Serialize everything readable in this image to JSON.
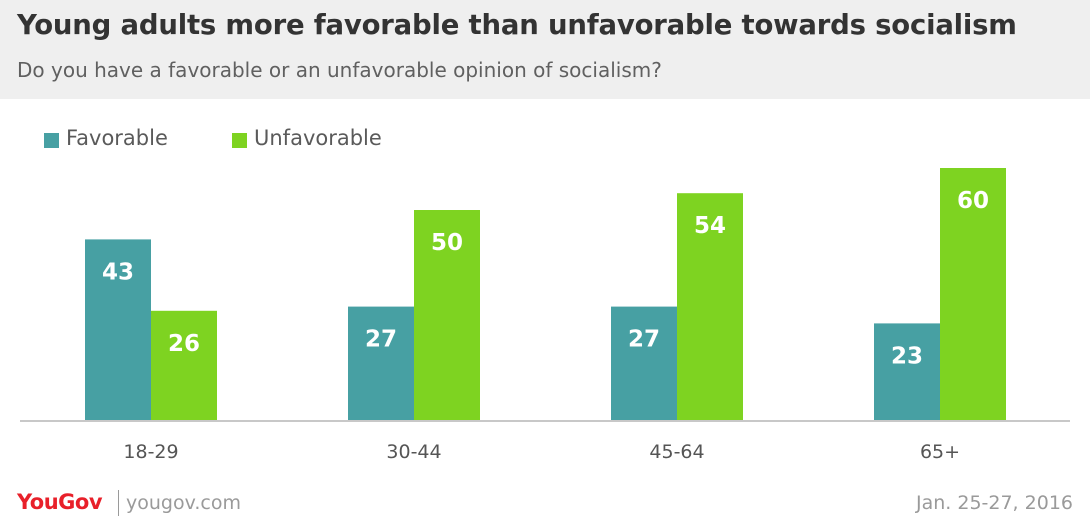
{
  "header": {
    "title": "Young adults more favorable than unfavorable towards socialism",
    "subtitle": "Do you have a favorable or an unfavorable opinion of socialism?"
  },
  "colors": {
    "favorable": "#47a0a3",
    "unfavorable": "#7ed321",
    "header_bg": "#efefef",
    "brand_red": "#e8202a"
  },
  "chart_data": {
    "type": "bar",
    "categories": [
      "18-29",
      "30-44",
      "45-64",
      "65+"
    ],
    "series": [
      {
        "name": "Favorable",
        "values": [
          43,
          27,
          27,
          23
        ]
      },
      {
        "name": "Unfavorable",
        "values": [
          26,
          50,
          54,
          60
        ]
      }
    ],
    "title": "Young adults more favorable than unfavorable towards socialism",
    "subtitle": "Do you have a favorable or an unfavorable opinion of socialism?",
    "ylim": [
      0,
      65
    ],
    "grid": false,
    "legend": "top-left",
    "data_labels": true
  },
  "footer": {
    "logo": "YouGov",
    "site": "yougov.com",
    "date": "Jan. 25-27, 2016"
  }
}
